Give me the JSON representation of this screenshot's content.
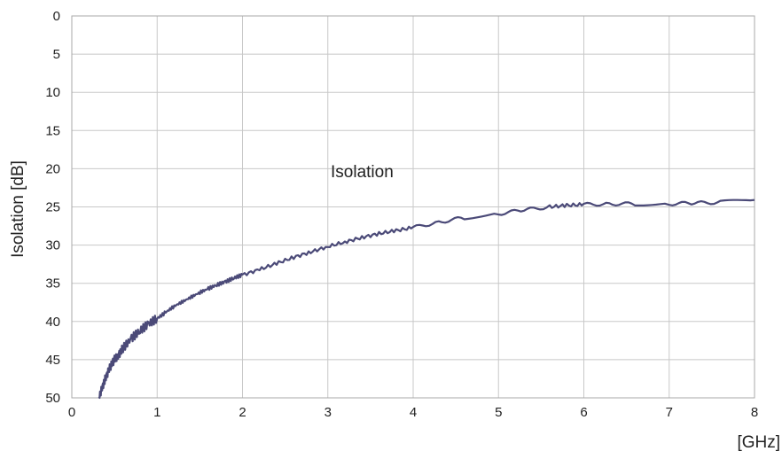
{
  "chart_data": {
    "type": "line",
    "title": "",
    "xlabel": "[GHz]",
    "ylabel": "Isolation [dB]",
    "xlim": [
      0,
      8
    ],
    "ylim": [
      0,
      50
    ],
    "y_inverted": true,
    "grid": true,
    "x_ticks": [
      "0",
      "1",
      "2",
      "3",
      "4",
      "5",
      "6",
      "7",
      "8"
    ],
    "y_ticks": [
      "0",
      "5",
      "10",
      "15",
      "20",
      "25",
      "30",
      "35",
      "40",
      "45",
      "50"
    ],
    "annotation": "Isolation",
    "colors": {
      "line": "#4b4a78",
      "grid": "#c8c8c8",
      "frame": "#a8a8a8"
    },
    "series": [
      {
        "x": [
          0.32,
          0.36,
          0.4,
          0.45,
          0.5,
          0.55,
          0.6,
          0.7,
          0.8,
          0.9,
          1.0,
          1.1,
          1.2,
          1.3,
          1.4,
          1.5,
          1.6,
          1.7,
          1.8,
          1.9,
          2.0,
          2.2,
          2.4,
          2.6,
          2.8,
          3.0,
          3.2,
          3.4,
          3.6,
          3.8,
          4.0,
          4.3,
          4.6,
          5.0,
          5.3,
          5.6,
          5.8,
          6.0,
          6.3,
          6.6,
          7.0,
          7.3,
          7.6,
          8.0
        ],
        "y": [
          50.0,
          48.5,
          47.2,
          46.0,
          45.0,
          44.3,
          43.5,
          42.2,
          41.2,
          40.3,
          39.6,
          38.8,
          38.0,
          37.4,
          36.8,
          36.2,
          35.7,
          35.2,
          34.8,
          34.3,
          33.9,
          33.2,
          32.4,
          31.6,
          30.9,
          30.2,
          29.6,
          29.0,
          28.5,
          28.1,
          27.7,
          27.0,
          26.4,
          25.9,
          25.4,
          25.0,
          24.8,
          24.7,
          24.6,
          24.6,
          24.6,
          24.5,
          24.4,
          24.1
        ]
      }
    ]
  }
}
